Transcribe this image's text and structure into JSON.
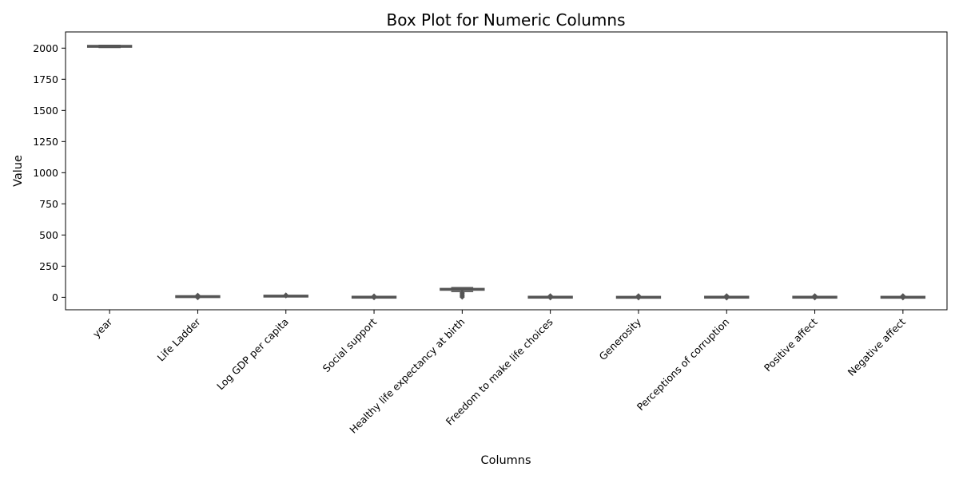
{
  "chart_data": {
    "type": "box",
    "title": "Box Plot for Numeric Columns",
    "xlabel": "Columns",
    "ylabel": "Value",
    "ylim": [
      -100,
      2130
    ],
    "yticks": [
      0,
      250,
      500,
      750,
      1000,
      1250,
      1500,
      1750,
      2000
    ],
    "grid": false,
    "box_color": "#6b6b6b",
    "line_color": "#555555",
    "series": [
      {
        "category": "year",
        "min": 2005,
        "q1": 2010,
        "median": 2015,
        "q3": 2019,
        "max": 2023,
        "outliers": []
      },
      {
        "category": "Life Ladder",
        "min": 1.3,
        "q1": 4.6,
        "median": 5.4,
        "q3": 6.2,
        "max": 8.0,
        "outliers": [
          -3,
          8,
          16
        ]
      },
      {
        "category": "Log GDP per capita",
        "min": 5.5,
        "q1": 8.5,
        "median": 9.5,
        "q3": 10.4,
        "max": 11.7,
        "outliers": [
          18,
          12
        ]
      },
      {
        "category": "Social support",
        "min": 0.3,
        "q1": 0.75,
        "median": 0.83,
        "q3": 0.9,
        "max": 0.99,
        "outliers": [
          -3,
          5,
          10
        ]
      },
      {
        "category": "Healthy life expectancy at birth",
        "min": 46,
        "q1": 59,
        "median": 65,
        "q3": 69,
        "max": 78,
        "outliers": [
          40,
          30,
          20,
          10,
          2
        ]
      },
      {
        "category": "Freedom to make life choices",
        "min": 0.3,
        "q1": 0.66,
        "median": 0.77,
        "q3": 0.86,
        "max": 0.99,
        "outliers": [
          -4,
          4,
          12
        ]
      },
      {
        "category": "Generosity",
        "min": -0.3,
        "q1": -0.1,
        "median": 0.0,
        "q3": 0.09,
        "max": 0.7,
        "outliers": [
          -4,
          5,
          12
        ]
      },
      {
        "category": "Perceptions of corruption",
        "min": 0.04,
        "q1": 0.69,
        "median": 0.8,
        "q3": 0.87,
        "max": 0.98,
        "outliers": [
          -5,
          4,
          12
        ]
      },
      {
        "category": "Positive affect",
        "min": 0.18,
        "q1": 0.57,
        "median": 0.66,
        "q3": 0.74,
        "max": 0.88,
        "outliers": [
          -4,
          5,
          12
        ]
      },
      {
        "category": "Negative affect",
        "min": 0.08,
        "q1": 0.21,
        "median": 0.26,
        "q3": 0.33,
        "max": 0.7,
        "outliers": [
          -4,
          5,
          12
        ]
      }
    ]
  }
}
